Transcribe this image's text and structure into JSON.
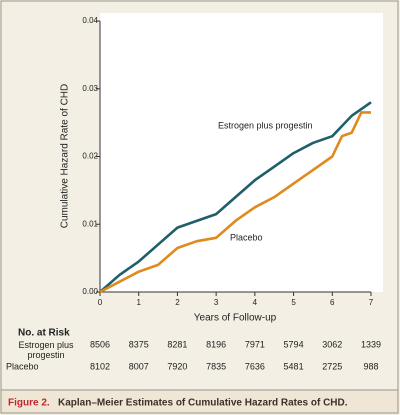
{
  "chart_data": {
    "type": "line",
    "ylabel": "Cumulative Hazard Rate of CHD",
    "xlabel": "Years of Follow-up",
    "x": [
      0,
      0.5,
      1,
      1.5,
      2,
      2.5,
      3,
      3.5,
      4,
      4.5,
      5,
      5.5,
      6,
      6.25,
      6.5,
      6.75,
      7
    ],
    "series": [
      {
        "name": "Estrogen plus progestin",
        "color": "#1f5f69",
        "values": [
          0,
          0.0025,
          0.0045,
          0.007,
          0.0095,
          0.0105,
          0.0115,
          0.014,
          0.0165,
          0.0185,
          0.0205,
          0.022,
          0.023,
          0.0245,
          0.026,
          0.027,
          0.028
        ]
      },
      {
        "name": "Placebo",
        "color": "#e0891c",
        "values": [
          0,
          0.0015,
          0.003,
          0.004,
          0.0065,
          0.0075,
          0.008,
          0.0105,
          0.0125,
          0.014,
          0.016,
          0.018,
          0.02,
          0.023,
          0.0235,
          0.0265,
          0.0265
        ]
      }
    ],
    "xlim": [
      0,
      7
    ],
    "xticks": [
      0,
      1,
      2,
      3,
      4,
      5,
      6,
      7
    ],
    "ylim": [
      0,
      0.04
    ],
    "yticks": [
      {
        "value": 0,
        "label": "0.00"
      },
      {
        "value": 0.01,
        "label": "0.01"
      },
      {
        "value": 0.02,
        "label": "0.02"
      },
      {
        "value": 0.03,
        "label": "0.03"
      },
      {
        "value": 0.04,
        "label": "0.04"
      }
    ],
    "risk_table": {
      "title": "No. at Risk",
      "rows": [
        {
          "label": "Estrogen plus progestin",
          "values": [
            8506,
            8375,
            8281,
            8196,
            7971,
            5794,
            3062,
            1339
          ]
        },
        {
          "label": "Placebo",
          "values": [
            8102,
            8007,
            7920,
            7835,
            7636,
            5481,
            2725,
            988
          ]
        }
      ]
    },
    "caption": {
      "label": "Figure 2.",
      "text": "Kaplan–Meier Estimates of Cumulative Hazard Rates of CHD."
    }
  }
}
